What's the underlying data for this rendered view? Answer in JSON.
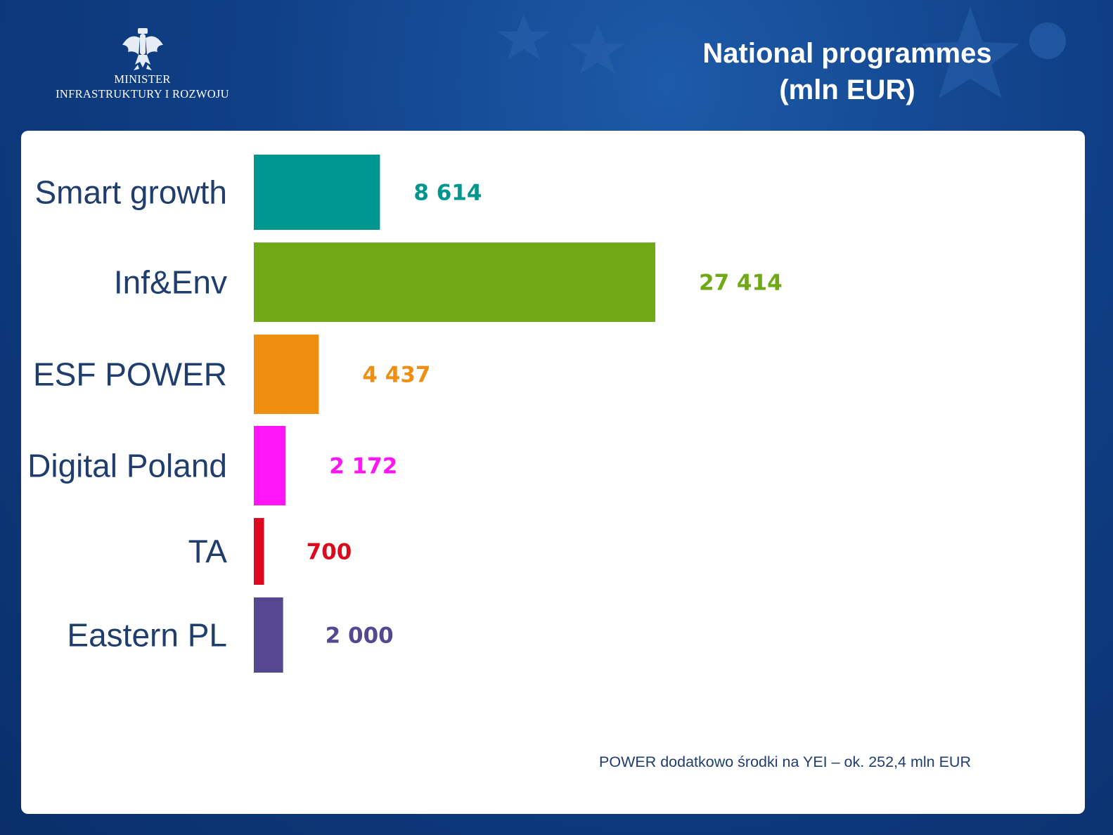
{
  "header": {
    "logo_line1": "MINISTER",
    "logo_line2": "INFRASTRUKTURY I ROZWOJU",
    "title_line1": "National programmes",
    "title_line2": "(mln EUR)"
  },
  "colors": {
    "background": "#0f3f86",
    "label_text": "#1f3e6e"
  },
  "chart_data": {
    "type": "bar",
    "orientation": "horizontal",
    "title": "National programmes (mln EUR)",
    "xlabel": "",
    "ylabel": "",
    "grid": false,
    "xlim": [
      0,
      27414
    ],
    "categories": [
      "Smart growth",
      "Inf&Env",
      "ESF POWER",
      "Digital Poland",
      "TA",
      "Eastern PL"
    ],
    "values": [
      8614,
      27414,
      4437,
      2172,
      700,
      2000
    ],
    "value_labels": [
      "8 614",
      "27 414",
      "4 437",
      "2 172",
      "700",
      "2 000"
    ],
    "colors": [
      "#009690",
      "#6fa915",
      "#ef8f10",
      "#ff15f5",
      "#dc0a1e",
      "#564791"
    ]
  },
  "footnote": "POWER dodatkowo środki na YEI – ok. 252,4 mln EUR"
}
